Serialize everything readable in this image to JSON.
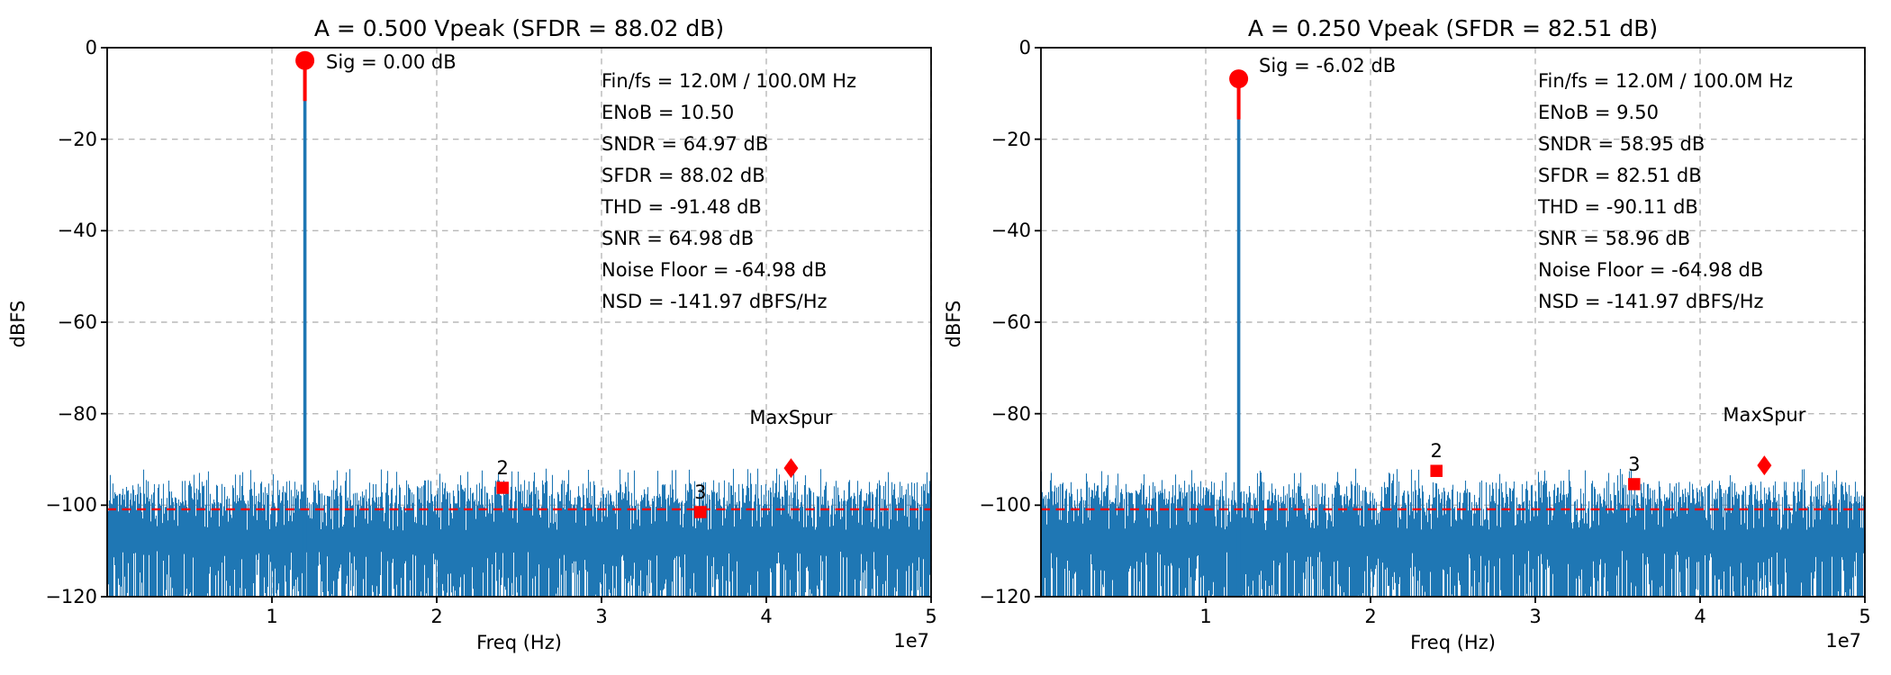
{
  "colors": {
    "spectrum_blue": "#1f77b4",
    "marker_red": "#ff0000",
    "grid_gray": "#b8b8b8",
    "text": "#000000",
    "background": "#ffffff"
  },
  "chart_data": [
    {
      "type": "line",
      "title": "A = 0.500 Vpeak (SFDR = 88.02 dB)",
      "xlabel": "Freq (Hz)",
      "ylabel": "dBFS",
      "axis_offset_label": "1e7",
      "xlim_hz": [
        0,
        50000000
      ],
      "ylim_dbfs": [
        -120,
        0
      ],
      "xtick_values_hz": [
        10000000,
        20000000,
        30000000,
        40000000,
        50000000
      ],
      "xtick_labels": [
        "1",
        "2",
        "3",
        "4",
        "5"
      ],
      "ytick_values_dbfs": [
        0,
        -20,
        -40,
        -60,
        -80,
        -100,
        -120
      ],
      "ytick_labels": [
        "0",
        "−20",
        "−40",
        "−60",
        "−80",
        "−100",
        "−120"
      ],
      "grid": "dashed",
      "legend": null,
      "signal": {
        "label": "Sig = 0.00 dB",
        "freq_hz": 12000000,
        "level_dbfs": 0.0,
        "plotted_peak_dbfs": -2.8
      },
      "noise_floor_line_dbfs": -100.9,
      "noise_band": {
        "top_envelope_dbfs": [
          -107,
          -92
        ],
        "extends_to_dbfs": -120,
        "seed": 12
      },
      "harmonic_markers": [
        {
          "label": "2",
          "freq_hz": 24000000,
          "level_dbfs": -96.2
        },
        {
          "label": "3",
          "freq_hz": 36000000,
          "level_dbfs": -101.5
        }
      ],
      "max_spur_marker": {
        "label": "MaxSpur",
        "freq_hz": 41500000,
        "level_dbfs": -91.9
      },
      "stats_lines": [
        "Fin/fs = 12.0M / 100.0M Hz",
        "ENoB = 10.50",
        "SNDR = 64.97 dB",
        "SFDR = 88.02 dB",
        "THD = -91.48 dB",
        "SNR = 64.98 dB",
        "Noise Floor = -64.98 dB",
        "NSD = -141.97 dBFS/Hz"
      ]
    },
    {
      "type": "line",
      "title": "A = 0.250 Vpeak (SFDR = 82.51 dB)",
      "xlabel": "Freq (Hz)",
      "ylabel": "dBFS",
      "axis_offset_label": "1e7",
      "xlim_hz": [
        0,
        50000000
      ],
      "ylim_dbfs": [
        -120,
        0
      ],
      "xtick_values_hz": [
        10000000,
        20000000,
        30000000,
        40000000,
        50000000
      ],
      "xtick_labels": [
        "1",
        "2",
        "3",
        "4",
        "5"
      ],
      "ytick_values_dbfs": [
        0,
        -20,
        -40,
        -60,
        -80,
        -100,
        -120
      ],
      "ytick_labels": [
        "0",
        "−20",
        "−40",
        "−60",
        "−80",
        "−100",
        "−120"
      ],
      "grid": "dashed",
      "legend": null,
      "signal": {
        "label": "Sig = -6.02 dB",
        "freq_hz": 12000000,
        "level_dbfs": -6.02,
        "plotted_peak_dbfs": -6.8
      },
      "noise_floor_line_dbfs": -100.9,
      "noise_band": {
        "top_envelope_dbfs": [
          -107,
          -92
        ],
        "extends_to_dbfs": -120,
        "seed": 87
      },
      "harmonic_markers": [
        {
          "label": "2",
          "freq_hz": 24000000,
          "level_dbfs": -92.5
        },
        {
          "label": "3",
          "freq_hz": 36000000,
          "level_dbfs": -95.4
        }
      ],
      "max_spur_marker": {
        "label": "MaxSpur",
        "freq_hz": 43900000,
        "level_dbfs": -91.3
      },
      "stats_lines": [
        "Fin/fs = 12.0M / 100.0M Hz",
        "ENoB = 9.50",
        "SNDR = 58.95 dB",
        "SFDR = 82.51 dB",
        "THD = -90.11 dB",
        "SNR = 58.96 dB",
        "Noise Floor = -64.98 dB",
        "NSD = -141.97 dBFS/Hz"
      ]
    }
  ]
}
